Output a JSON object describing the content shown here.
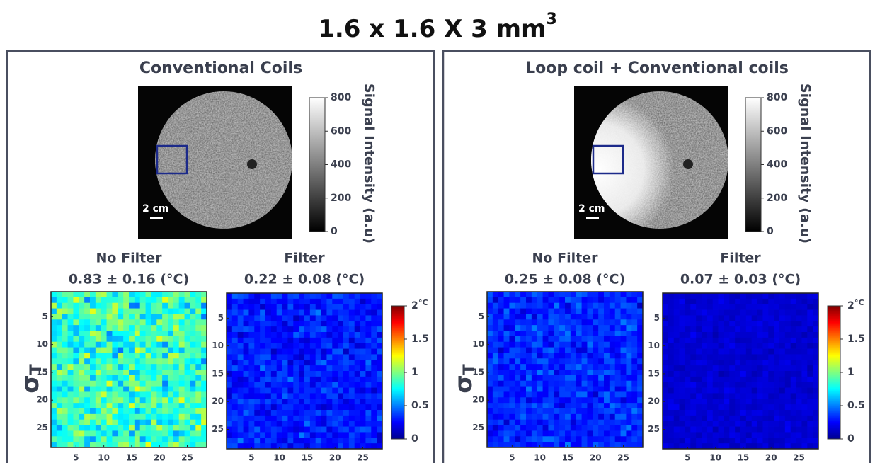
{
  "title": {
    "text": "1.6 x 1.6 X 3 mm",
    "superscript": "3"
  },
  "axis_label": {
    "symbol": "σ",
    "subscript": "T"
  },
  "scale_bar": "2 cm",
  "signal_colorbar": {
    "label": "Signal Intensity (a.u)",
    "lim": [
      0,
      800
    ],
    "ticks": [
      0,
      200,
      400,
      600,
      800
    ]
  },
  "temp_colorbar": {
    "unit": "°C",
    "lim": [
      0,
      2
    ],
    "ticks": [
      0,
      0.5,
      1,
      1.5,
      2
    ]
  },
  "map_axes": {
    "lim": [
      0.5,
      28.5
    ],
    "ticks": [
      5,
      10,
      15,
      20,
      25
    ]
  },
  "panels": [
    {
      "title": "Conventional Coils",
      "maps": [
        {
          "title": "No Filter",
          "stats": "0.83 ± 0.16 (°C)",
          "mean": 0.83,
          "sd": 0.16
        },
        {
          "title": "Filter",
          "stats": "0.22 ± 0.08 (°C)",
          "mean": 0.22,
          "sd": 0.08
        }
      ]
    },
    {
      "title": "Loop coil + Conventional coils",
      "maps": [
        {
          "title": "No Filter",
          "stats": "0.25 ± 0.08 (°C)",
          "mean": 0.25,
          "sd": 0.08
        },
        {
          "title": "Filter",
          "stats": "0.07 ± 0.03 (°C)",
          "mean": 0.07,
          "sd": 0.03
        }
      ]
    }
  ]
}
